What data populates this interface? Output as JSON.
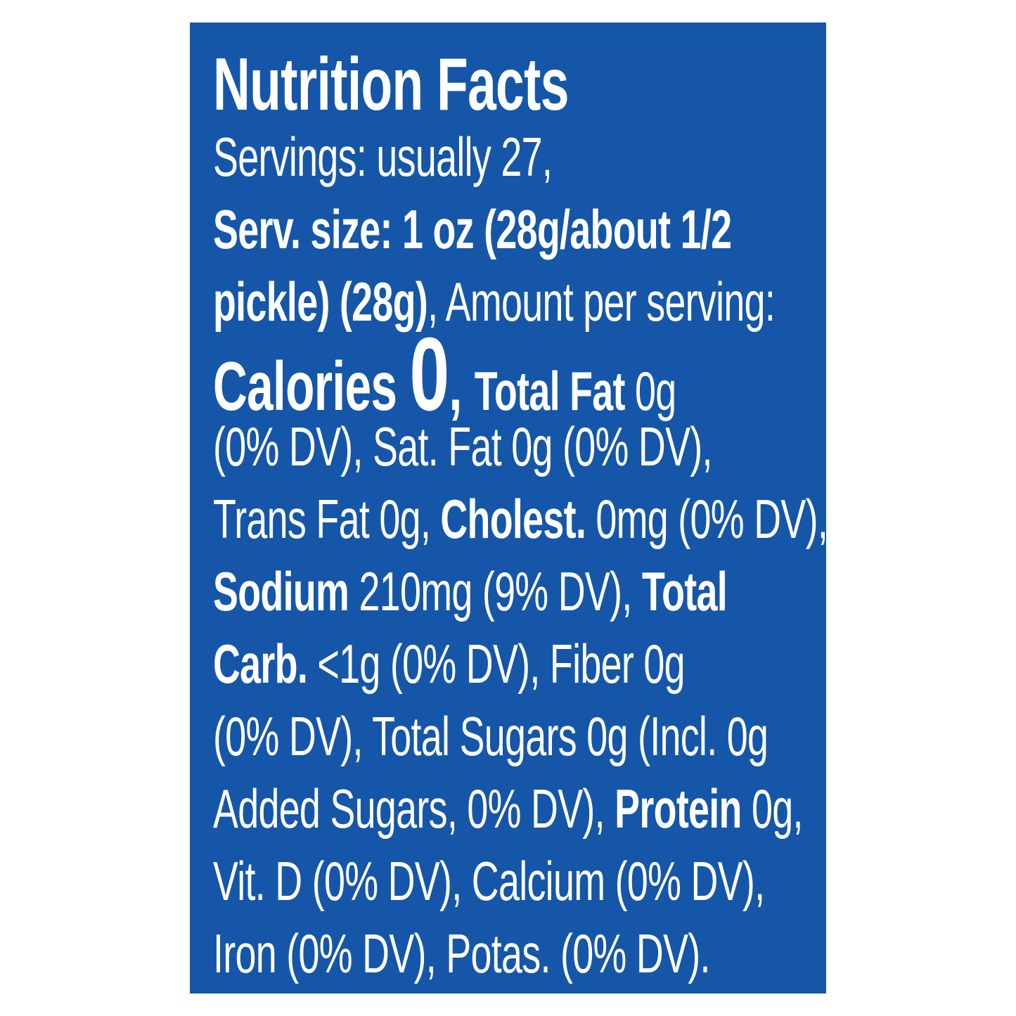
{
  "colors": {
    "page_background": "#FFFFFF",
    "label_background": "#1556A8",
    "label_text": "#FFFFFF"
  },
  "nutrition_label": {
    "title": "Nutrition Facts",
    "servings_line": "Servings: usually 27,",
    "serving_size_line1": "Serv. size: 1 oz (28g/about 1/2",
    "serving_size_line2_bold": "pickle) (28g)",
    "serving_size_line2_rest": ", Amount per serving:",
    "calories_label": "Calories ",
    "calories_value": "0",
    "calories_separator": ", ",
    "total_fat_label": "Total Fat",
    "total_fat_value": " 0g",
    "fat_dv_sat_fat_line": "(0% DV), Sat. Fat 0g (0% DV),",
    "trans_fat_text": "Trans Fat 0g, ",
    "cholesterol_label": "Cholest.",
    "cholesterol_values": " 0mg (0% DV),",
    "sodium_label": "Sodium",
    "sodium_values": " 210mg (9% DV), ",
    "total_carb_label_start": "Total",
    "total_carb_label_end": "Carb.",
    "total_carb_values": " <1g (0% DV), Fiber 0g",
    "fiber_dv_sugars_line": "(0% DV), Total Sugars 0g (Incl. 0g",
    "added_sugars_text": "Added Sugars, 0% DV), ",
    "protein_label": "Protein",
    "protein_values": " 0g,",
    "vitamins_line1": "Vit. D (0% DV), Calcium (0% DV),",
    "vitamins_line2": "Iron (0% DV), Potas. (0% DV)."
  },
  "facts": {
    "servings": "usually 27",
    "serving_size": "1 oz (28g/about 1/2 pickle) (28g)",
    "calories": "0",
    "total_fat": "0g (0% DV)",
    "saturated_fat": "0g (0% DV)",
    "trans_fat": "0g",
    "cholesterol": "0mg (0% DV)",
    "sodium": "210mg (9% DV)",
    "total_carbohydrate": "<1g (0% DV)",
    "fiber": "0g (0% DV)",
    "total_sugars": "0g",
    "added_sugars": "Incl. 0g Added Sugars, 0% DV",
    "protein": "0g",
    "vitamin_d": "0% DV",
    "calcium": "0% DV",
    "iron": "0% DV",
    "potassium": "0% DV"
  }
}
